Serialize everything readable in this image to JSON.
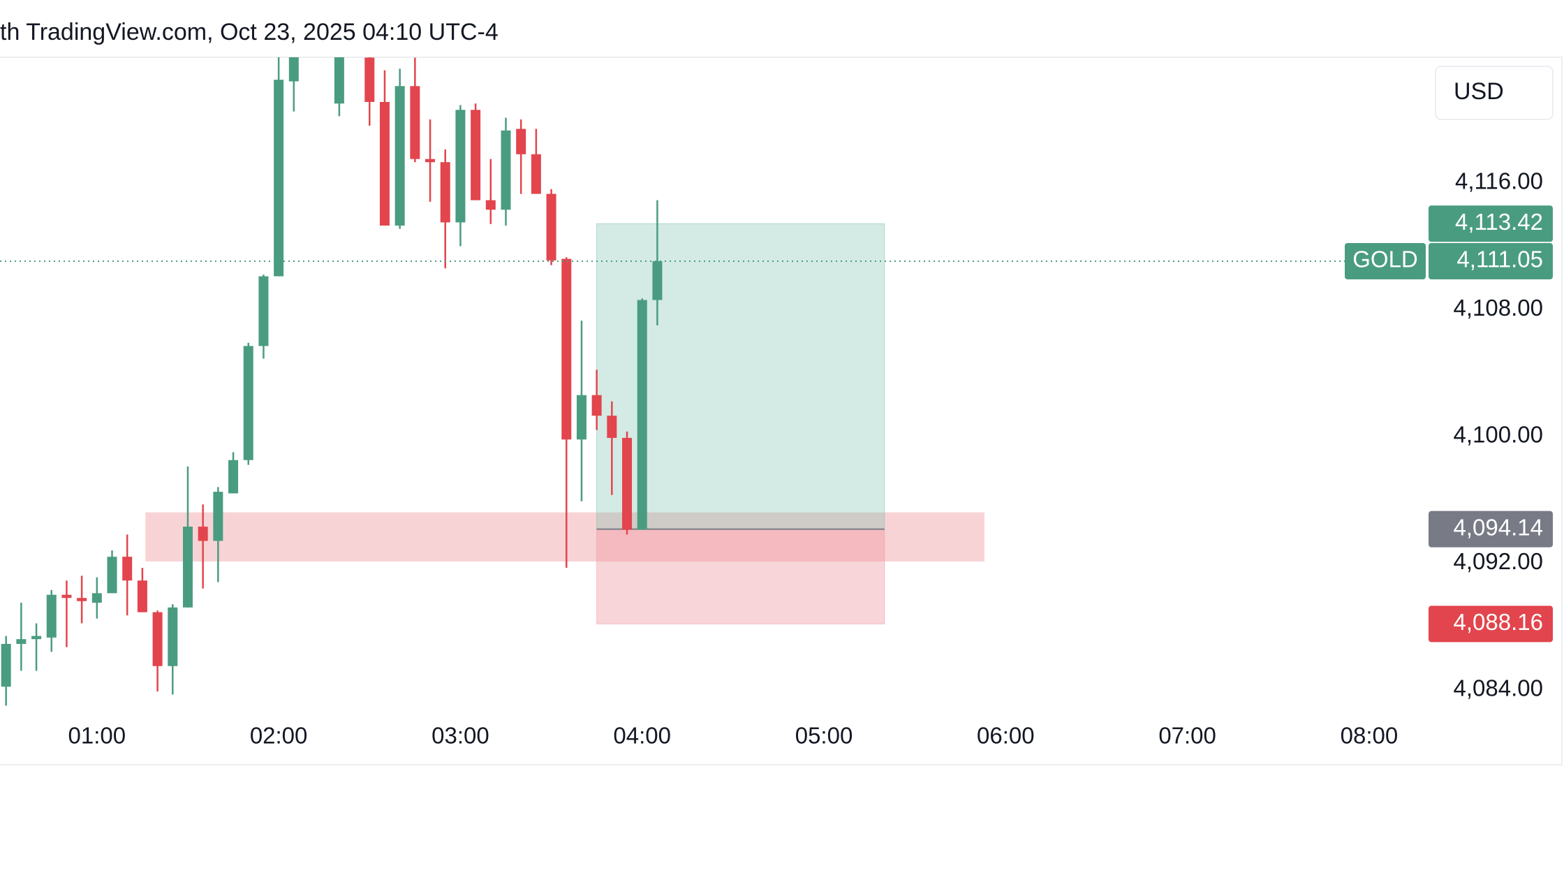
{
  "header": "th TradingView.com, Oct 23, 2025 04:10 UTC-4",
  "currency": "USD",
  "chart_data": {
    "type": "candlestick",
    "symbol": "GOLD",
    "x": [
      "00:30",
      "00:35",
      "00:40",
      "00:45",
      "00:50",
      "00:55",
      "01:00",
      "01:05",
      "01:10",
      "01:15",
      "01:20",
      "01:25",
      "01:30",
      "01:35",
      "01:40",
      "01:45",
      "01:50",
      "01:55",
      "02:00",
      "02:05",
      "02:10",
      "02:15",
      "02:20",
      "02:25",
      "02:30",
      "02:35",
      "02:40",
      "02:45",
      "02:50",
      "02:55",
      "03:00",
      "03:05",
      "03:10",
      "03:15",
      "03:20",
      "03:25",
      "03:30",
      "03:35",
      "03:40",
      "03:45",
      "03:50",
      "03:55",
      "04:00",
      "04:05"
    ],
    "open": [
      4084.2,
      4086.9,
      4087.2,
      4087.3,
      4090.0,
      4089.8,
      4089.5,
      4090.1,
      4092.4,
      4090.9,
      4088.9,
      4085.5,
      4089.2,
      4094.3,
      4093.4,
      4096.4,
      4098.5,
      4105.7,
      4110.1,
      4122.4,
      null,
      null,
      4121.0,
      null,
      4123.9,
      4121.1,
      4113.3,
      4122.1,
      4117.5,
      4117.3,
      4113.5,
      4120.6,
      4114.9,
      4114.3,
      4119.4,
      4117.8,
      4115.3,
      4111.2,
      4099.8,
      4102.6,
      4101.3,
      4099.9,
      4094.1,
      4108.6
    ],
    "high": [
      4087.4,
      4089.5,
      4088.2,
      4090.3,
      4090.9,
      4091.2,
      4091.1,
      4092.8,
      4093.8,
      4091.7,
      4089.0,
      4089.4,
      4098.1,
      4095.7,
      4096.8,
      4099.0,
      4105.9,
      4110.2,
      4124.5,
      4126.0,
      null,
      null,
      4125.0,
      null,
      4125.0,
      4123.1,
      4123.2,
      4123.9,
      4120.0,
      4118.1,
      4120.9,
      4121.0,
      4117.5,
      4120.1,
      4120.0,
      4119.4,
      4115.6,
      4111.3,
      4107.3,
      4104.2,
      4102.2,
      4100.3,
      4108.7,
      4114.9
    ],
    "low": [
      4083.0,
      4085.2,
      4085.2,
      4086.4,
      4086.7,
      4088.2,
      4088.5,
      4090.1,
      4088.7,
      4088.9,
      4083.9,
      4083.7,
      4089.2,
      4090.4,
      4090.8,
      4096.4,
      4098.2,
      4104.9,
      4110.1,
      4120.5,
      null,
      null,
      4120.2,
      null,
      4119.6,
      4113.3,
      4113.1,
      4117.3,
      4114.8,
      4110.6,
      4112.0,
      4114.9,
      4113.4,
      4113.3,
      4115.3,
      4115.3,
      4110.8,
      4091.7,
      4095.9,
      4100.4,
      4096.3,
      4093.8,
      4094.1,
      4107.0
    ],
    "close": [
      4086.9,
      4087.2,
      4087.4,
      4090.0,
      4089.8,
      4089.6,
      4090.1,
      4092.4,
      4090.9,
      4088.9,
      4085.5,
      4089.2,
      4094.3,
      4093.4,
      4096.5,
      4098.5,
      4105.7,
      4110.1,
      4122.5,
      4124.4,
      null,
      null,
      4124.5,
      null,
      4121.1,
      4113.3,
      4122.1,
      4117.5,
      4117.3,
      4113.5,
      4120.6,
      4114.9,
      4114.3,
      4119.3,
      4117.8,
      4115.3,
      4111.1,
      4099.8,
      4102.6,
      4101.3,
      4099.9,
      4094.1,
      4108.6,
      4111.05
    ],
    "up_color": "#4a9c80",
    "down_color": "#e2454d",
    "xlim": [
      "00:28",
      "08:18"
    ],
    "xticks": [
      "01:00",
      "02:00",
      "03:00",
      "04:00",
      "05:00",
      "06:00",
      "07:00",
      "08:00"
    ],
    "ylim": [
      4082.27,
      4123.92
    ],
    "yticks": [
      {
        "value": 4084,
        "label": "4,084.00"
      },
      {
        "value": 4092,
        "label": "4,092.00"
      },
      {
        "value": 4100,
        "label": "4,100.00"
      },
      {
        "value": 4108,
        "label": "4,108.00"
      },
      {
        "value": 4116,
        "label": "4,116.00"
      }
    ],
    "last_price": {
      "value": 4111.05,
      "label": "4,111.05"
    },
    "position": {
      "start": "03:45",
      "end": "05:20",
      "entry": {
        "value": 4094.14,
        "label": "4,094.14"
      },
      "target": {
        "value": 4113.42,
        "label": "4,113.42"
      },
      "stop": {
        "value": 4088.16,
        "label": "4,088.16"
      }
    },
    "zone": {
      "start": "01:16",
      "end": "05:53",
      "top": 4095.2,
      "bottom": 4092.1
    }
  }
}
